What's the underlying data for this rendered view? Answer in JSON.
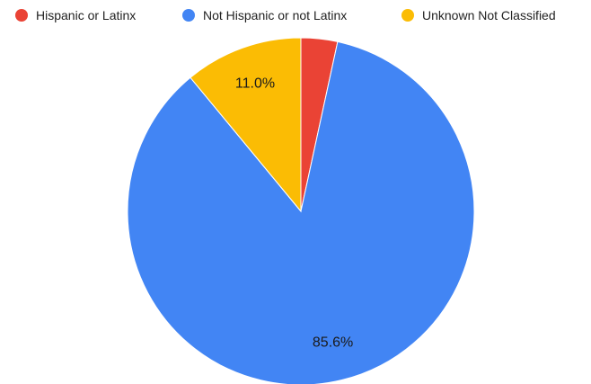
{
  "chart_data": {
    "type": "pie",
    "title": "",
    "start_angle_deg": 0,
    "direction": "clockwise",
    "legend_position": "top",
    "series": [
      {
        "name": "Hispanic or Latinx",
        "value": 3.4,
        "color": "#ea4335",
        "data_label": ""
      },
      {
        "name": "Not Hispanic or not Latinx",
        "value": 85.6,
        "color": "#4285f4",
        "data_label": "85.6%"
      },
      {
        "name": "Unknown Not Classified",
        "value": 11.0,
        "color": "#fbbc04",
        "data_label": "11.0%"
      }
    ]
  }
}
